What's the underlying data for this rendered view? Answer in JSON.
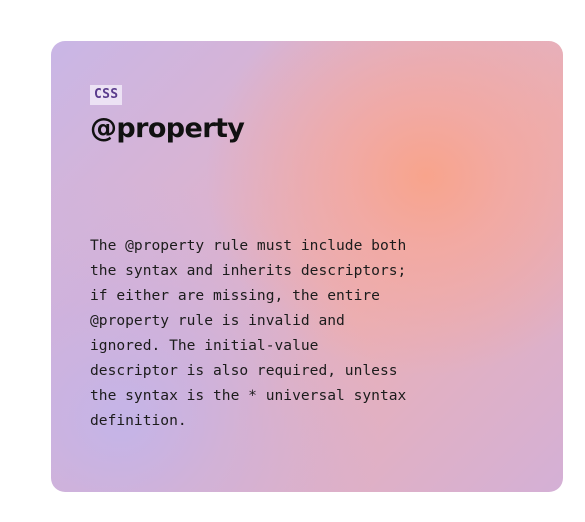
{
  "card": {
    "tag": "CSS",
    "title": "@property",
    "description": "The @property rule must include both\nthe syntax and inherits descriptors;\nif either are missing, the entire\n@property rule is invalid and\nignored. The initial-value\ndescriptor is also required, unless\nthe syntax is the * universal syntax\ndefinition."
  }
}
